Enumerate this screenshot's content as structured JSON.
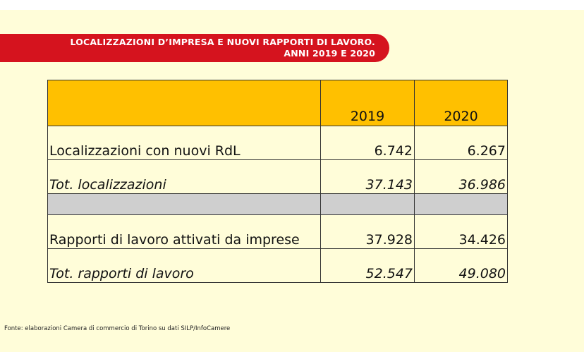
{
  "banner": {
    "line1": "LOCALIZZAZIONI D’IMPRESA E NUOVI RAPPORTI DI LAVORO.",
    "line2": "ANNI 2019 E 2020"
  },
  "table": {
    "header": {
      "blank": "",
      "col1": "2019",
      "col2": "2020"
    },
    "rows": [
      {
        "label": "Localizzazioni con nuovi RdL",
        "v2019": "6.742",
        "v2020": "6.267"
      },
      {
        "label": "Tot. localizzazioni",
        "v2019": "37.143",
        "v2020": "36.986"
      },
      {
        "label": "Rapporti di lavoro attivati da imprese",
        "v2019": "37.928",
        "v2020": "34.426"
      },
      {
        "label": "Tot. rapporti di lavoro",
        "v2019": "52.547",
        "v2020": "49.080"
      }
    ]
  },
  "source": "Fonte: elaborazioni Camera di commercio di Torino su dati SILP/InfoCamere",
  "colors": {
    "banner": "#d5131e",
    "header": "#ffc000",
    "separator": "#cfcfcf",
    "background": "#fffdd9"
  }
}
